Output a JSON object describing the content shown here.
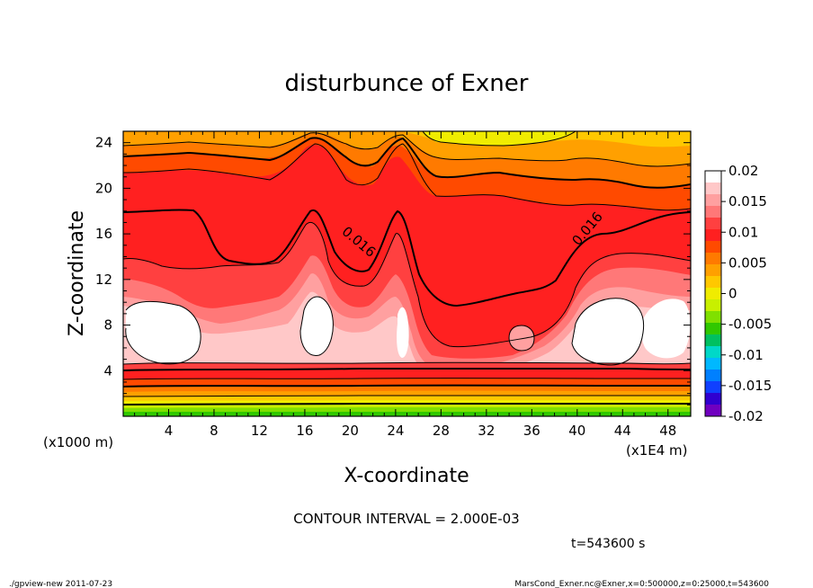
{
  "chart_data": {
    "type": "heatmap",
    "title": "disturbunce of Exner",
    "xlabel": "X-coordinate",
    "ylabel": "Z-coordinate",
    "x_unit_left": "(x1000 m)",
    "x_unit_right": "(x1E4 m)",
    "xlim": [
      0,
      50
    ],
    "ylim": [
      0,
      25
    ],
    "x_ticks": [
      4,
      8,
      12,
      16,
      20,
      24,
      28,
      32,
      36,
      40,
      44,
      48
    ],
    "y_ticks": [
      4,
      8,
      12,
      16,
      20,
      24
    ],
    "contour_labels": [
      {
        "text": "0.016",
        "x": 20.5,
        "y": 15.0,
        "angle": 40
      },
      {
        "text": "0.016",
        "x": 41.2,
        "y": 16.2,
        "angle": -50
      }
    ],
    "colorbar": {
      "min": -0.02,
      "max": 0.02,
      "ticks": [
        "0.02",
        "0.015",
        "0.01",
        "0.005",
        "0",
        "-0.005",
        "-0.01",
        "-0.015",
        "-0.02"
      ],
      "colors": [
        "#ffffff",
        "#ffc8c8",
        "#ffa0a0",
        "#ff7878",
        "#ff4040",
        "#ff2020",
        "#ff4a00",
        "#ff7a00",
        "#ffa000",
        "#ffc800",
        "#f0ec00",
        "#c8f000",
        "#80e000",
        "#30c800",
        "#00c060",
        "#00d8c8",
        "#00b8ff",
        "#0080ff",
        "#1040ff",
        "#3000d0",
        "#7000c0"
      ]
    },
    "contour_interval": "CONTOUR INTERVAL = 2.000E-03",
    "time_label": "t=543600 s",
    "footer_left": "./gpview-new  2011-07-23",
    "footer_right": "MarsCond_Exner.nc@Exner,x=0:500000,z=0:25000,t=543600"
  }
}
